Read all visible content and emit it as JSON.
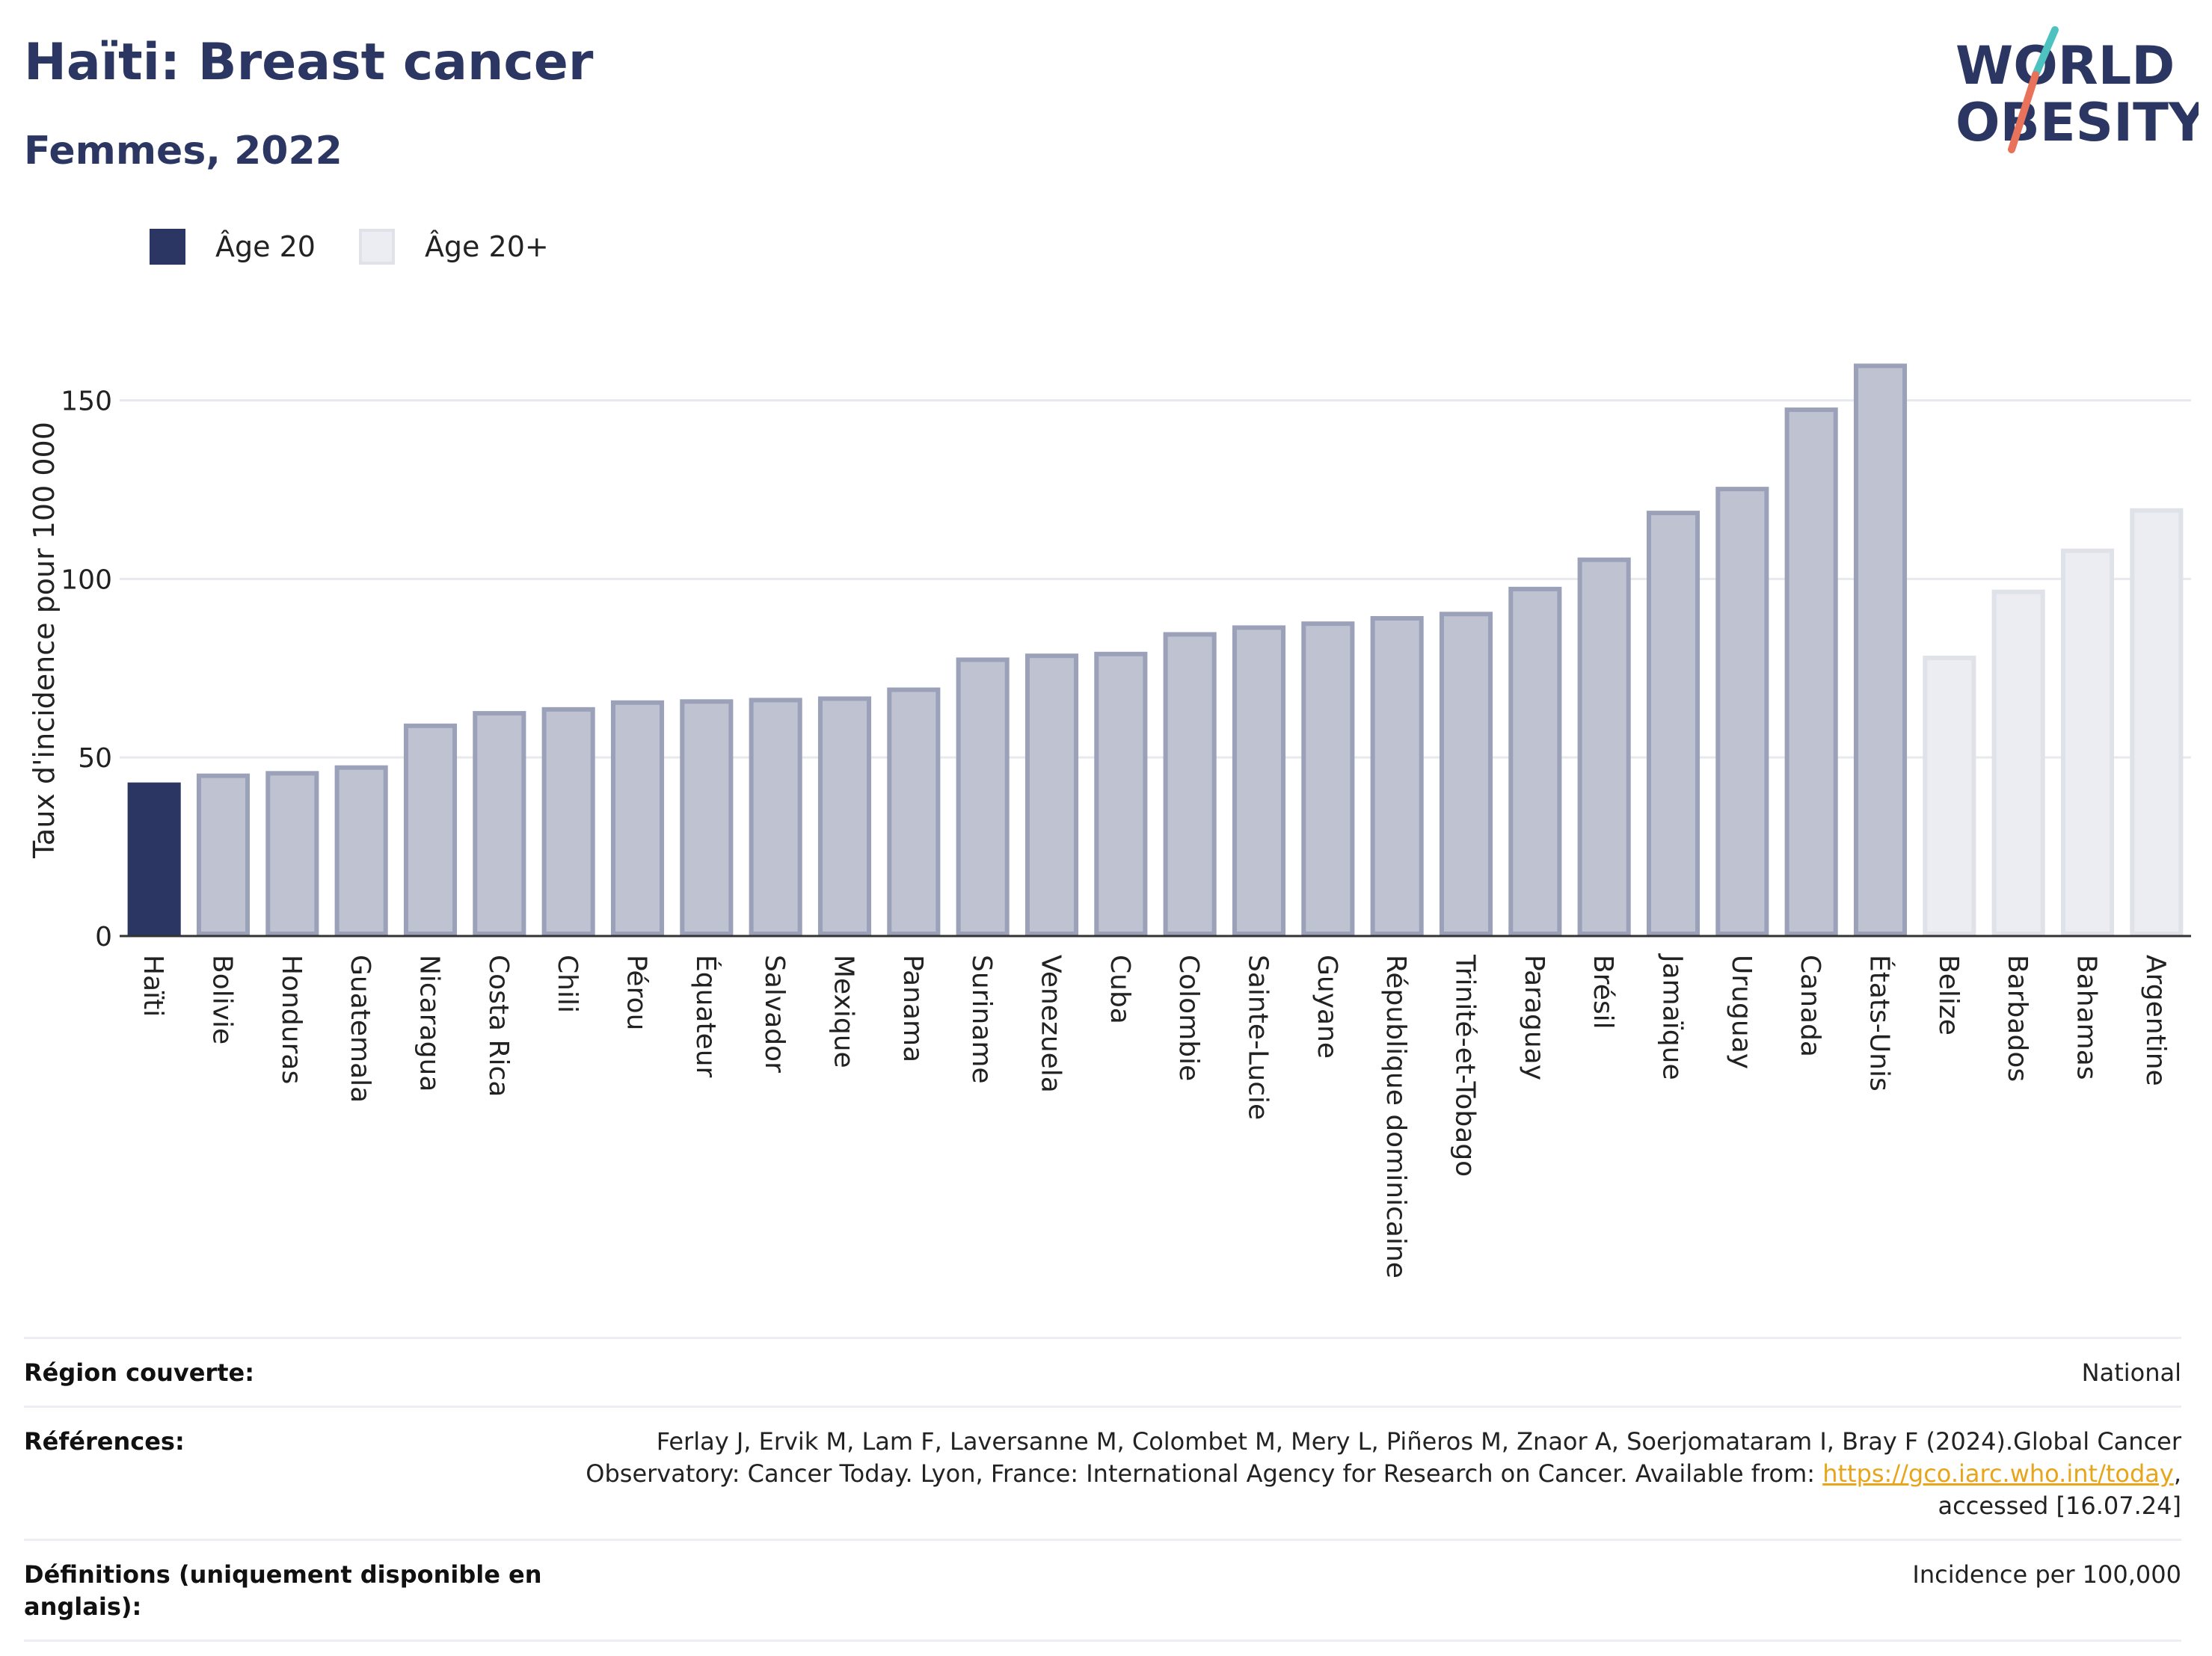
{
  "header": {
    "title": "Haïti: Breast cancer",
    "subtitle": "Femmes, 2022"
  },
  "logo": {
    "line1": "WORLD",
    "line2": "OBESITY"
  },
  "legend": [
    {
      "label": "Âge 20",
      "color": "#2b3762"
    },
    {
      "label": "Âge 20+",
      "color": "#ecedf2"
    }
  ],
  "chart_data": {
    "type": "bar",
    "title": "Haïti: Breast cancer",
    "subtitle": "Femmes, 2022",
    "ylabel": "Taux d'incidence pour 100 000",
    "xlabel": "",
    "ylim": [
      0,
      170
    ],
    "yticks": [
      0,
      50,
      100,
      150
    ],
    "grid": true,
    "legend_position": "top-left",
    "categories": [
      "Haïti",
      "Bolivie",
      "Honduras",
      "Guatemala",
      "Nicaragua",
      "Costa Rica",
      "Chili",
      "Pérou",
      "Équateur",
      "Salvador",
      "Mexique",
      "Panama",
      "Suriname",
      "Venezuela",
      "Cuba",
      "Colombie",
      "Sainte-Lucie",
      "Guyane",
      "République dominicaine",
      "Trinité-et-Tobago",
      "Paraguay",
      "Brésil",
      "Jamaïque",
      "Uruguay",
      "Canada",
      "États-Unis",
      "Belize",
      "Barbados",
      "Bahamas",
      "Argentine"
    ],
    "values": [
      43.0,
      45.5,
      46.2,
      47.8,
      59.5,
      63.0,
      64.1,
      66.0,
      66.3,
      66.7,
      67.1,
      69.6,
      78.0,
      79.1,
      79.6,
      85.1,
      87.0,
      88.1,
      89.6,
      90.8,
      97.8,
      106.0,
      119.1,
      125.8,
      148.0,
      160.3,
      78.5,
      97.0,
      108.5,
      119.8
    ],
    "groups": [
      "highlight",
      "Âge 20",
      "Âge 20",
      "Âge 20",
      "Âge 20",
      "Âge 20",
      "Âge 20",
      "Âge 20",
      "Âge 20",
      "Âge 20",
      "Âge 20",
      "Âge 20",
      "Âge 20",
      "Âge 20",
      "Âge 20",
      "Âge 20",
      "Âge 20",
      "Âge 20",
      "Âge 20",
      "Âge 20",
      "Âge 20",
      "Âge 20",
      "Âge 20",
      "Âge 20",
      "Âge 20",
      "Âge 20",
      "Âge 20+",
      "Âge 20+",
      "Âge 20+",
      "Âge 20+"
    ],
    "colors": {
      "highlight": "#2b3762",
      "Âge 20": "#bfc2d1",
      "Âge 20 border": "#9ba1b9",
      "Âge 20+": "#ecedf2",
      "Âge 20+ border": "#e0e2e9"
    }
  },
  "info": {
    "region_label": "Région couverte:",
    "region_value": "National",
    "references_label": "Références:",
    "references_line1": "Ferlay J, Ervik M, Lam F, Laversanne M, Colombet M, Mery L, Piñeros M, Znaor A, Soerjomataram I, Bray F (2024).Global Cancer",
    "references_line2": "Observatory: Cancer Today. Lyon, France: International Agency for Research on Cancer. Available from:",
    "references_link": "https://gco.iarc.who.int/today",
    "references_line3": "accessed [16.07.24]",
    "definitions_label": "Définitions (uniquement disponible en anglais):",
    "definitions_value": "Incidence per 100,000"
  }
}
